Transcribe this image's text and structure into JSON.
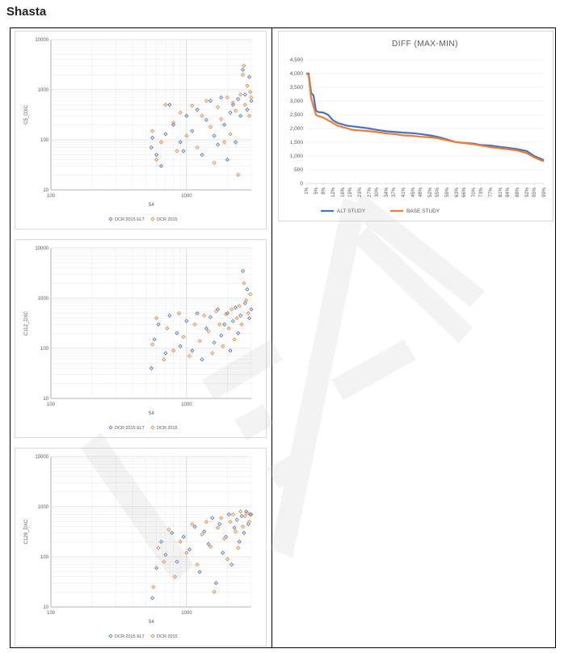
{
  "page": {
    "title": "Shasta"
  },
  "chart_data": [
    {
      "type": "scatter",
      "xlabel": "S4",
      "ylabel": "C5_DXC",
      "xscale": "log",
      "yscale": "log",
      "xlim": [
        100,
        3000
      ],
      "ylim": [
        10,
        10000
      ],
      "xticks": [
        "100",
        "1000"
      ],
      "yticks": [
        "10",
        "100",
        "1000",
        "10000"
      ],
      "grid": true,
      "legend": "bottom",
      "series": [
        {
          "name": "DCR 2015 ELT",
          "color": "#4472c4",
          "marker": "diamond-open",
          "x": [
            550,
            560,
            600,
            650,
            700,
            750,
            800,
            900,
            950,
            1000,
            1100,
            1200,
            1300,
            1400,
            1500,
            1600,
            1700,
            1800,
            1900,
            2000,
            2100,
            2200,
            2300,
            2400,
            2500,
            2600,
            2700,
            2800,
            2900,
            3000
          ],
          "y": [
            70,
            110,
            50,
            30,
            130,
            500,
            200,
            90,
            60,
            300,
            150,
            400,
            50,
            250,
            600,
            120,
            80,
            700,
            200,
            40,
            350,
            500,
            90,
            650,
            300,
            2500,
            800,
            400,
            1800,
            600
          ]
        },
        {
          "name": "DCR 2015",
          "color": "#ed7d31",
          "marker": "diamond-open",
          "x": [
            560,
            600,
            650,
            700,
            800,
            850,
            900,
            1000,
            1100,
            1200,
            1300,
            1400,
            1500,
            1600,
            1700,
            1800,
            1900,
            2000,
            2100,
            2200,
            2300,
            2400,
            2500,
            2600,
            2700,
            2800,
            2900,
            3000,
            2950,
            2650
          ],
          "y": [
            150,
            40,
            90,
            500,
            220,
            60,
            350,
            120,
            480,
            70,
            300,
            600,
            180,
            35,
            450,
            260,
            90,
            700,
            130,
            550,
            380,
            20,
            800,
            2000,
            500,
            1200,
            300,
            700,
            900,
            3000
          ]
        }
      ]
    },
    {
      "type": "scatter",
      "xlabel": "S4",
      "ylabel": "C112_DXC",
      "xscale": "log",
      "yscale": "log",
      "xlim": [
        100,
        3000
      ],
      "ylim": [
        10,
        10000
      ],
      "xticks": [
        "100",
        "1000"
      ],
      "yticks": [
        "10",
        "100",
        "1000",
        "10000"
      ],
      "grid": true,
      "legend": "bottom",
      "series": [
        {
          "name": "DCR 2015 ELT",
          "color": "#4472c4",
          "marker": "diamond-open",
          "x": [
            550,
            580,
            620,
            700,
            750,
            850,
            900,
            1000,
            1100,
            1200,
            1300,
            1400,
            1500,
            1600,
            1700,
            1800,
            1900,
            2000,
            2100,
            2200,
            2300,
            2400,
            2500,
            2600,
            2700,
            2800,
            2900,
            3000
          ],
          "y": [
            40,
            150,
            300,
            80,
            450,
            200,
            110,
            350,
            90,
            500,
            60,
            250,
            420,
            130,
            600,
            180,
            300,
            500,
            90,
            350,
            650,
            200,
            450,
            3500,
            800,
            1500,
            400,
            600
          ]
        },
        {
          "name": "DCR 2015",
          "color": "#ed7d31",
          "marker": "diamond-open",
          "x": [
            560,
            600,
            680,
            720,
            800,
            880,
            950,
            1050,
            1150,
            1250,
            1350,
            1450,
            1550,
            1650,
            1750,
            1850,
            1950,
            2050,
            2150,
            2250,
            2350,
            2450,
            2550,
            2650,
            2750,
            2850,
            2950
          ],
          "y": [
            120,
            400,
            60,
            250,
            90,
            500,
            170,
            70,
            300,
            140,
            450,
            220,
            80,
            550,
            300,
            110,
            480,
            250,
            600,
            150,
            400,
            700,
            300,
            2000,
            900,
            500,
            1200
          ]
        }
      ]
    },
    {
      "type": "scatter",
      "xlabel": "S4",
      "ylabel": "C129_DXC",
      "xscale": "log",
      "yscale": "log",
      "xlim": [
        100,
        3000
      ],
      "ylim": [
        10,
        10000
      ],
      "xticks": [
        "100",
        "1000"
      ],
      "yticks": [
        "10",
        "100",
        "1000",
        "10000"
      ],
      "grid": true,
      "legend": "bottom",
      "series": [
        {
          "name": "DCR 2015 ELT",
          "color": "#4472c4",
          "marker": "diamond-open",
          "x": [
            560,
            600,
            650,
            700,
            780,
            850,
            950,
            1050,
            1150,
            1250,
            1350,
            1450,
            1550,
            1650,
            1750,
            1850,
            1950,
            2050,
            2150,
            2250,
            2350,
            2450,
            2550,
            2650,
            2750,
            2850,
            2950
          ],
          "y": [
            15,
            60,
            200,
            110,
            300,
            80,
            250,
            140,
            400,
            50,
            320,
            180,
            600,
            30,
            450,
            120,
            250,
            700,
            70,
            380,
            550,
            200,
            650,
            300,
            800,
            450,
            700
          ]
        },
        {
          "name": "DCR 2015",
          "color": "#ed7d31",
          "marker": "diamond-open",
          "x": [
            570,
            620,
            680,
            740,
            820,
            900,
            1000,
            1100,
            1200,
            1300,
            1400,
            1500,
            1600,
            1700,
            1800,
            1900,
            2000,
            2100,
            2200,
            2300,
            2400,
            2500,
            2600,
            2700,
            2800,
            2900,
            3000
          ],
          "y": [
            25,
            150,
            80,
            350,
            40,
            200,
            120,
            450,
            70,
            280,
            500,
            160,
            20,
            380,
            600,
            230,
            90,
            500,
            700,
            320,
            150,
            800,
            400,
            650,
            750,
            500,
            700
          ]
        }
      ]
    },
    {
      "type": "line",
      "title": "DIFF (MAX-MIN)",
      "xlabel": "",
      "ylabel": "",
      "ylim": [
        0,
        4500
      ],
      "yticks": [
        "0",
        "500",
        "1,000",
        "1,500",
        "2,000",
        "2,500",
        "3,000",
        "3,500",
        "4,000",
        "4,500"
      ],
      "categories": [
        "1%",
        "5%",
        "8%",
        "12%",
        "16%",
        "19%",
        "23%",
        "27%",
        "30%",
        "34%",
        "37%",
        "41%",
        "45%",
        "48%",
        "52%",
        "55%",
        "59%",
        "63%",
        "66%",
        "70%",
        "73%",
        "77%",
        "81%",
        "84%",
        "88%",
        "92%",
        "95%",
        "99%"
      ],
      "grid": true,
      "legend": "bottom",
      "series": [
        {
          "name": "ALT STUDY",
          "color": "#4472c4",
          "x": [
            1,
            2,
            3,
            4,
            5,
            6,
            8,
            10,
            12,
            14,
            16,
            18,
            20,
            23,
            27,
            30,
            34,
            37,
            41,
            45,
            48,
            52,
            55,
            59,
            63,
            66,
            70,
            73,
            77,
            81,
            84,
            88,
            92,
            95,
            99
          ],
          "y": [
            4000,
            4000,
            3300,
            3200,
            2650,
            2600,
            2580,
            2500,
            2300,
            2200,
            2150,
            2100,
            2080,
            2050,
            2000,
            1950,
            1900,
            1880,
            1850,
            1830,
            1800,
            1750,
            1700,
            1600,
            1500,
            1480,
            1450,
            1400,
            1380,
            1330,
            1300,
            1250,
            1180,
            1000,
            850
          ]
        },
        {
          "name": "BASE STUDY",
          "color": "#ed7d31",
          "x": [
            1,
            2,
            3,
            4,
            5,
            6,
            8,
            10,
            12,
            14,
            16,
            18,
            20,
            23,
            27,
            30,
            34,
            37,
            41,
            45,
            48,
            52,
            55,
            59,
            63,
            66,
            70,
            73,
            77,
            81,
            84,
            88,
            92,
            95,
            99
          ],
          "y": [
            4000,
            3950,
            3100,
            2800,
            2500,
            2450,
            2400,
            2300,
            2200,
            2100,
            2050,
            2000,
            1950,
            1930,
            1900,
            1870,
            1820,
            1800,
            1750,
            1730,
            1700,
            1680,
            1650,
            1570,
            1500,
            1470,
            1430,
            1380,
            1320,
            1280,
            1250,
            1200,
            1100,
            950,
            800
          ]
        }
      ]
    }
  ]
}
